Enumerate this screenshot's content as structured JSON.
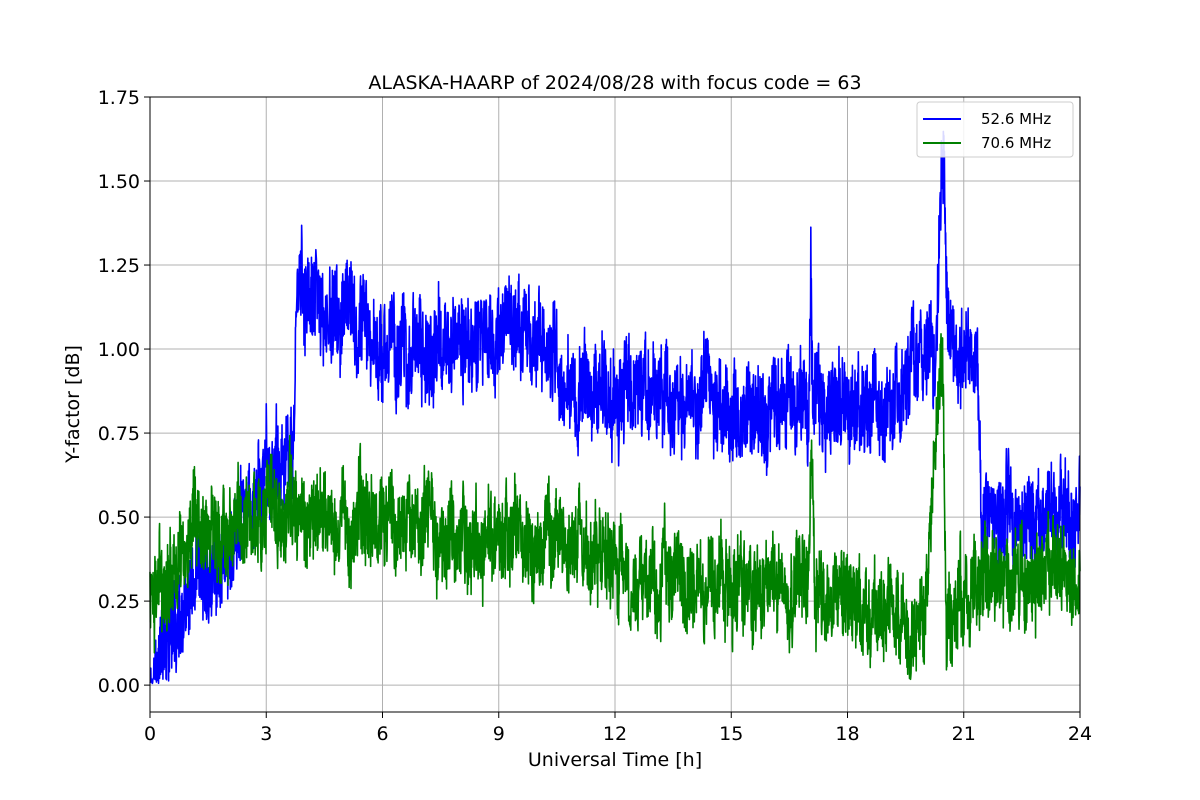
{
  "chart_data": {
    "type": "line",
    "title": "ALASKA-HAARP of 2024/08/28 with focus code = 63",
    "xlabel": "Universal Time [h]",
    "ylabel": "Y-factor [dB]",
    "xlim": [
      0,
      24
    ],
    "ylim": [
      -0.08,
      1.75
    ],
    "xticks": [
      "0",
      "3",
      "6",
      "9",
      "12",
      "15",
      "18",
      "21",
      "24"
    ],
    "yticks": [
      "0.00",
      "0.25",
      "0.50",
      "0.75",
      "1.00",
      "1.25",
      "1.50",
      "1.75"
    ],
    "grid": true,
    "legend_position": "top-right",
    "series": [
      {
        "name": "52.6 MHz",
        "color": "#0000ff",
        "x": [
          0,
          0.5,
          1.0,
          1.5,
          2.0,
          2.5,
          3.0,
          3.4,
          3.7,
          3.8,
          4.2,
          5.0,
          6.0,
          7.0,
          8.0,
          9.0,
          10.0,
          10.4,
          10.6,
          11.5,
          12.5,
          13.5,
          14.5,
          15.5,
          16.5,
          17.0,
          17.05,
          17.1,
          17.5,
          18.5,
          19.5,
          19.7,
          20.0,
          20.3,
          20.45,
          20.6,
          21.0,
          21.35,
          21.45,
          22.0,
          23.0,
          24.0
        ],
        "y": [
          0.05,
          0.12,
          0.22,
          0.3,
          0.4,
          0.5,
          0.6,
          0.68,
          0.7,
          1.18,
          1.12,
          1.07,
          1.02,
          0.98,
          1.03,
          1.05,
          1.03,
          1.0,
          0.9,
          0.88,
          0.87,
          0.86,
          0.84,
          0.8,
          0.82,
          0.85,
          1.3,
          0.85,
          0.83,
          0.83,
          0.84,
          0.97,
          0.98,
          1.0,
          1.66,
          0.98,
          0.97,
          0.95,
          0.47,
          0.48,
          0.5,
          0.5
        ]
      },
      {
        "name": "70.6 MHz",
        "color": "#008000",
        "x": [
          0,
          0.5,
          1.0,
          2.0,
          3.0,
          4.0,
          5.0,
          6.0,
          7.0,
          8.0,
          9.0,
          10.0,
          11.0,
          12.0,
          13.0,
          14.0,
          15.0,
          16.0,
          17.0,
          17.08,
          17.15,
          18.0,
          19.0,
          20.0,
          20.45,
          20.55,
          21.0,
          22.0,
          23.0,
          24.0
        ],
        "y": [
          0.25,
          0.35,
          0.42,
          0.47,
          0.52,
          0.5,
          0.5,
          0.5,
          0.47,
          0.45,
          0.45,
          0.43,
          0.38,
          0.35,
          0.33,
          0.31,
          0.3,
          0.29,
          0.3,
          0.72,
          0.29,
          0.25,
          0.22,
          0.2,
          1.05,
          0.22,
          0.25,
          0.3,
          0.32,
          0.32
        ]
      }
    ]
  }
}
